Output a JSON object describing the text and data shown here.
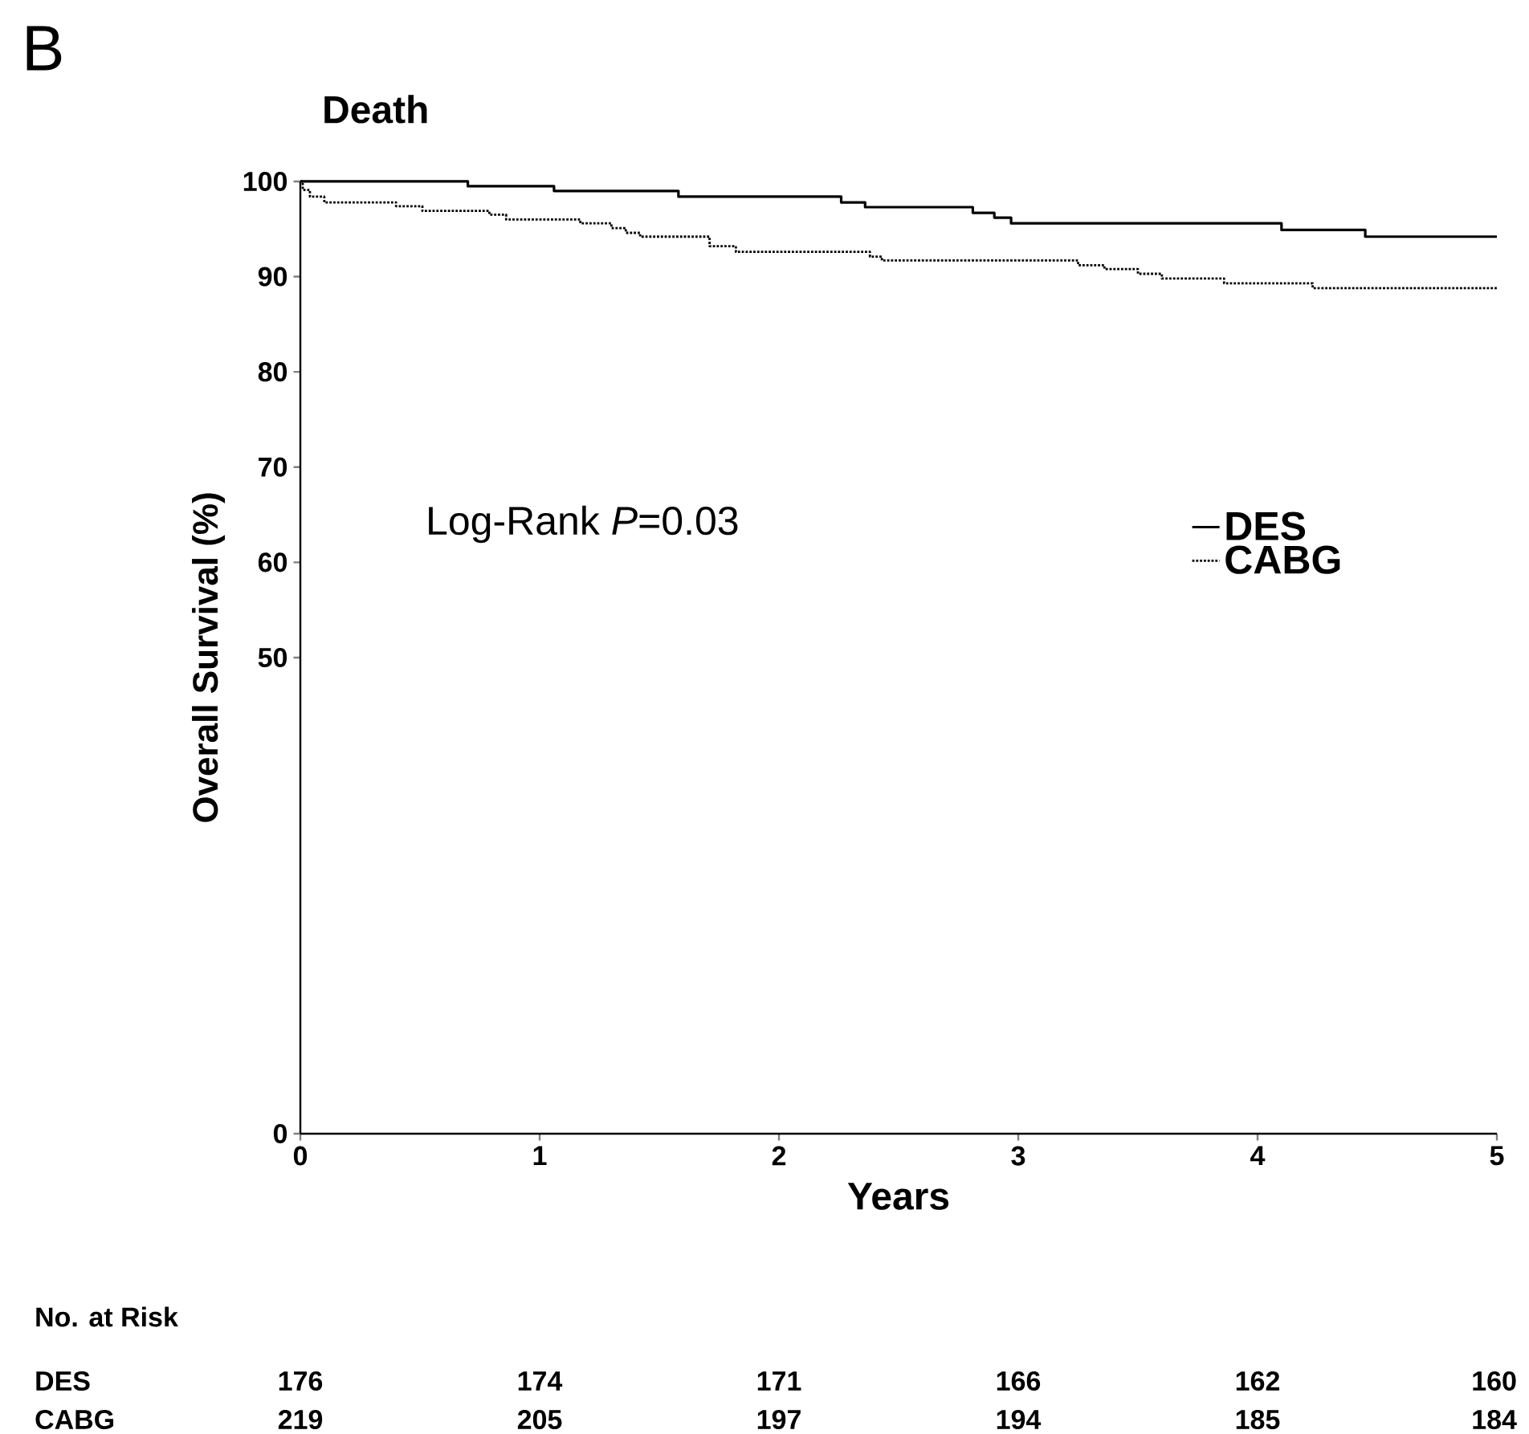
{
  "chart_data": {
    "type": "step",
    "title": "Death",
    "xlabel": "Years",
    "ylabel": "Overall Survival (%)",
    "xlim": [
      0,
      5
    ],
    "xticks": [
      0,
      1,
      2,
      3,
      4,
      5
    ],
    "ylim": [
      0,
      100
    ],
    "yticks": [
      0,
      50,
      60,
      70,
      80,
      90,
      100
    ],
    "legend": "right",
    "series": [
      {
        "name": "DES",
        "color": "#000000",
        "line_style": "solid",
        "x": [
          0,
          0.7,
          1.06,
          1.58,
          2.26,
          2.36,
          2.81,
          2.9,
          2.97,
          4.1,
          4.45,
          5
        ],
        "values": [
          100,
          99.5,
          99.0,
          98.4,
          97.8,
          97.3,
          96.7,
          96.2,
          95.6,
          94.9,
          94.2,
          94.2
        ]
      },
      {
        "name": "CABG",
        "color": "#000000",
        "line_style": "dotted",
        "x": [
          0,
          0.01,
          0.04,
          0.1,
          0.4,
          0.51,
          0.79,
          0.86,
          1.17,
          1.3,
          1.36,
          1.42,
          1.71,
          1.82,
          2.38,
          2.43,
          3.25,
          3.36,
          3.5,
          3.6,
          3.86,
          4.23,
          5
        ],
        "values": [
          100,
          99.1,
          98.4,
          97.8,
          97.4,
          96.9,
          96.5,
          96.0,
          95.6,
          95.1,
          94.6,
          94.2,
          93.2,
          92.6,
          92.1,
          91.7,
          91.2,
          90.8,
          90.3,
          89.8,
          89.3,
          88.8,
          88.8
        ]
      }
    ],
    "annotations": [
      "B",
      "Log-Rank *P*=0.03",
      "No. at Risk",
      "DES",
      "176",
      "174",
      "171",
      "166",
      "162",
      "160",
      "CABG",
      "219",
      "205",
      "197",
      "194",
      "185",
      "184"
    ]
  }
}
